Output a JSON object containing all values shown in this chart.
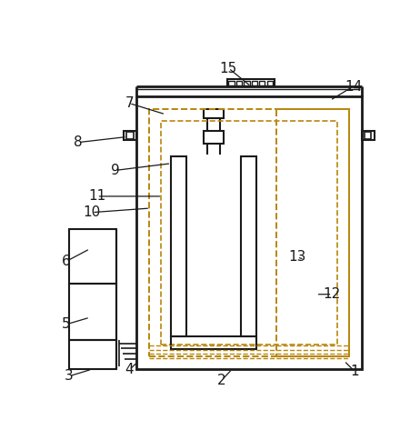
{
  "figure_size": [
    4.62,
    4.84
  ],
  "dpi": 100,
  "bg_color": "#ffffff",
  "line_color": "#1a1a1a",
  "dashed_color": "#b8860b",
  "label_fontsize": 11,
  "annotations": [
    [
      "1",
      430,
      455,
      415,
      440
    ],
    [
      "2",
      240,
      468,
      255,
      452
    ],
    [
      "3",
      22,
      462,
      55,
      452
    ],
    [
      "4",
      108,
      453,
      122,
      440
    ],
    [
      "5",
      18,
      388,
      52,
      378
    ],
    [
      "6",
      18,
      298,
      52,
      280
    ],
    [
      "7",
      108,
      72,
      160,
      88
    ],
    [
      "8",
      35,
      128,
      105,
      120
    ],
    [
      "9",
      88,
      168,
      168,
      158
    ],
    [
      "10",
      55,
      228,
      138,
      222
    ],
    [
      "11",
      62,
      205,
      155,
      205
    ],
    [
      "12",
      398,
      345,
      375,
      345
    ],
    [
      "13",
      348,
      292,
      358,
      295
    ],
    [
      "14",
      428,
      48,
      395,
      68
    ],
    [
      "15",
      250,
      22,
      282,
      48
    ]
  ]
}
